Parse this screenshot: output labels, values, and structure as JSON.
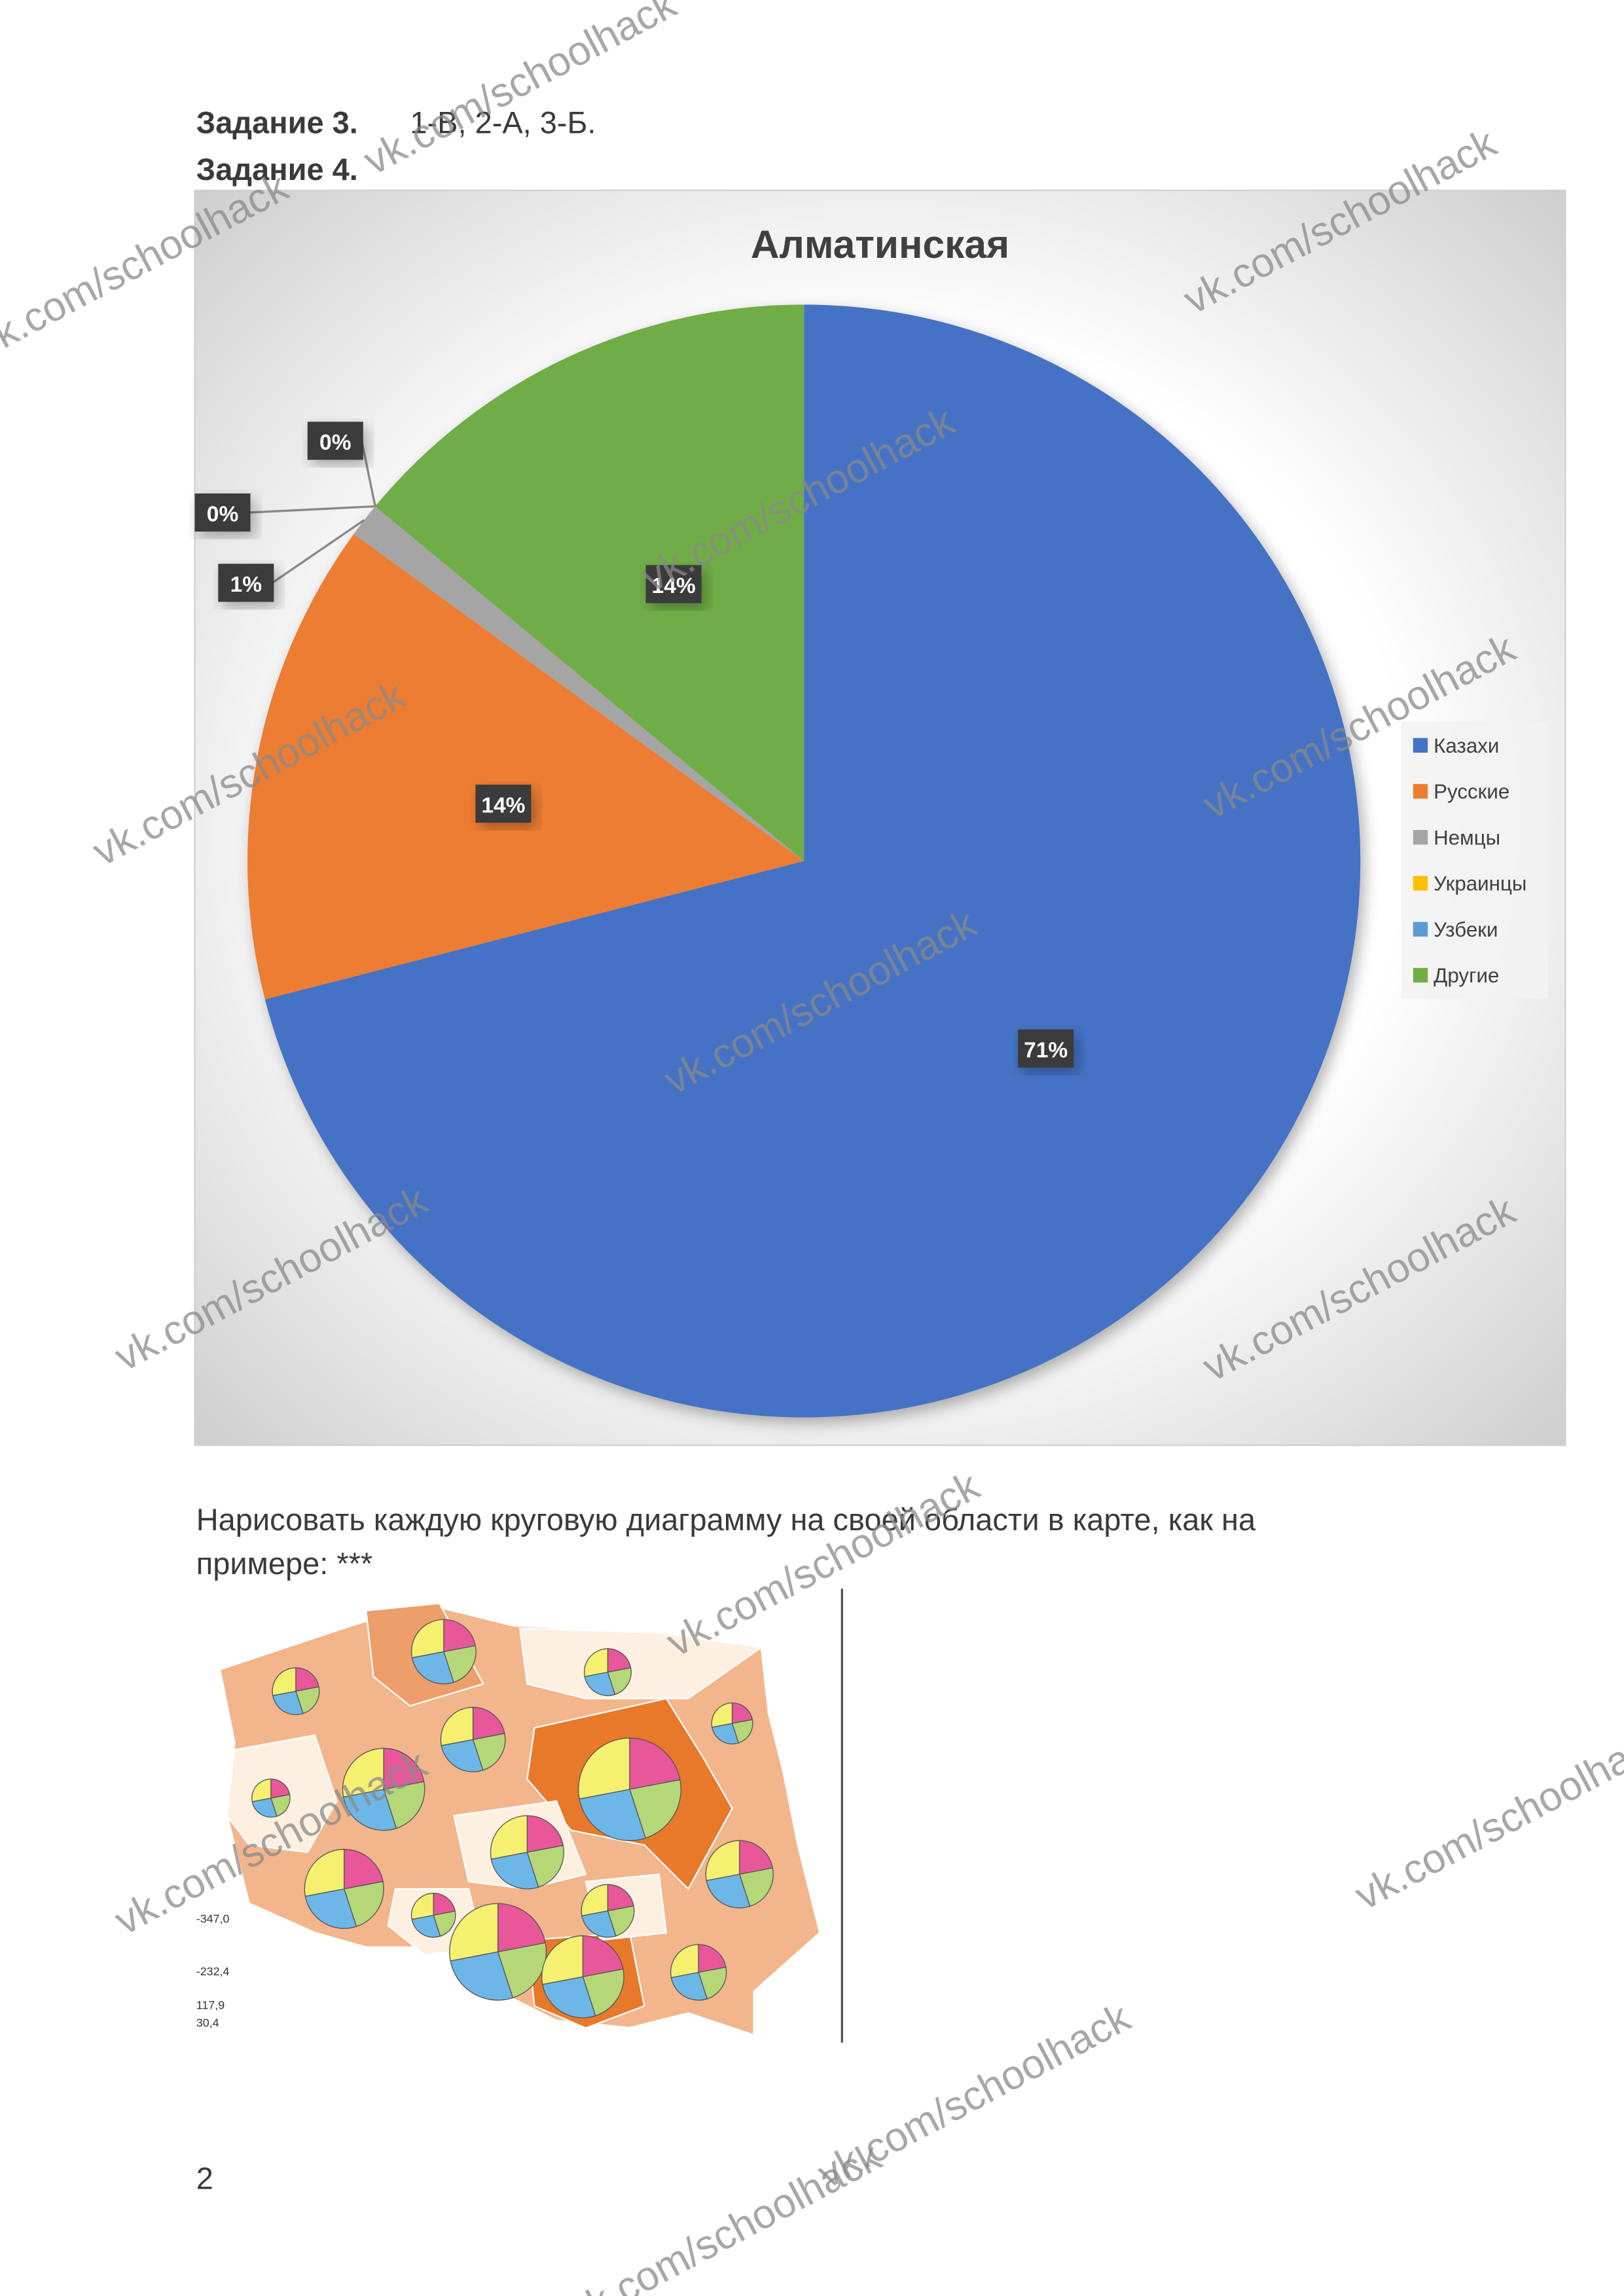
{
  "header": {
    "task3_label": "Задание 3.",
    "task3_answer": "1-В, 2-А, 3-Б.",
    "task4_label": "Задание 4."
  },
  "chart_data": {
    "type": "pie",
    "title": "Алматинская",
    "categories": [
      "Казахи",
      "Русские",
      "Немцы",
      "Украинцы",
      "Узбеки",
      "Другие"
    ],
    "values": [
      71,
      14,
      1,
      0,
      0,
      14
    ],
    "value_labels": [
      "71%",
      "14%",
      "1%",
      "0%",
      "0%",
      "14%"
    ],
    "colors": [
      "#4472c4",
      "#ed7d31",
      "#a5a5a5",
      "#ffc000",
      "#5b9bd5",
      "#70ad47"
    ],
    "legend": "right"
  },
  "instruction": [
    "Нарисовать каждую круговую диаграмму на своей области в карте, как на",
    "примере: ***"
  ],
  "map_legend": [
    "-347,0",
    "-232,4",
    "117,9",
    "30,4"
  ],
  "watermark": "vk.com/schoolhack",
  "page_number": "2"
}
